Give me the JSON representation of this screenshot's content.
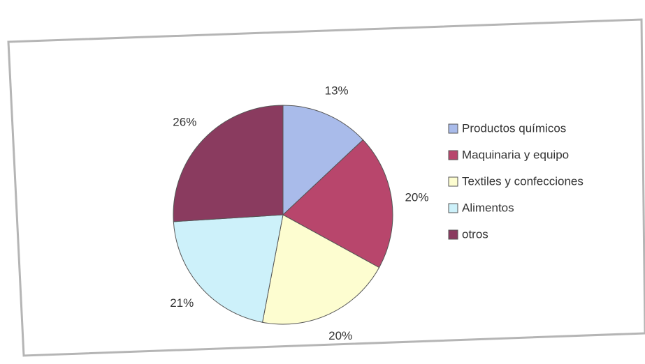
{
  "chart_data": {
    "type": "pie",
    "categories": [
      "Productos químicos",
      "Maquinaria y equipo",
      "Textiles y confecciones",
      "Alimentos",
      "otros"
    ],
    "values": [
      13,
      20,
      20,
      21,
      26
    ],
    "value_labels": [
      "13%",
      "20%",
      "20%",
      "21%",
      "26%"
    ],
    "colors": [
      "#a9bbea",
      "#b8466c",
      "#fdfdd0",
      "#cdf1fa",
      "#8a3b5f"
    ],
    "legend": "right"
  }
}
